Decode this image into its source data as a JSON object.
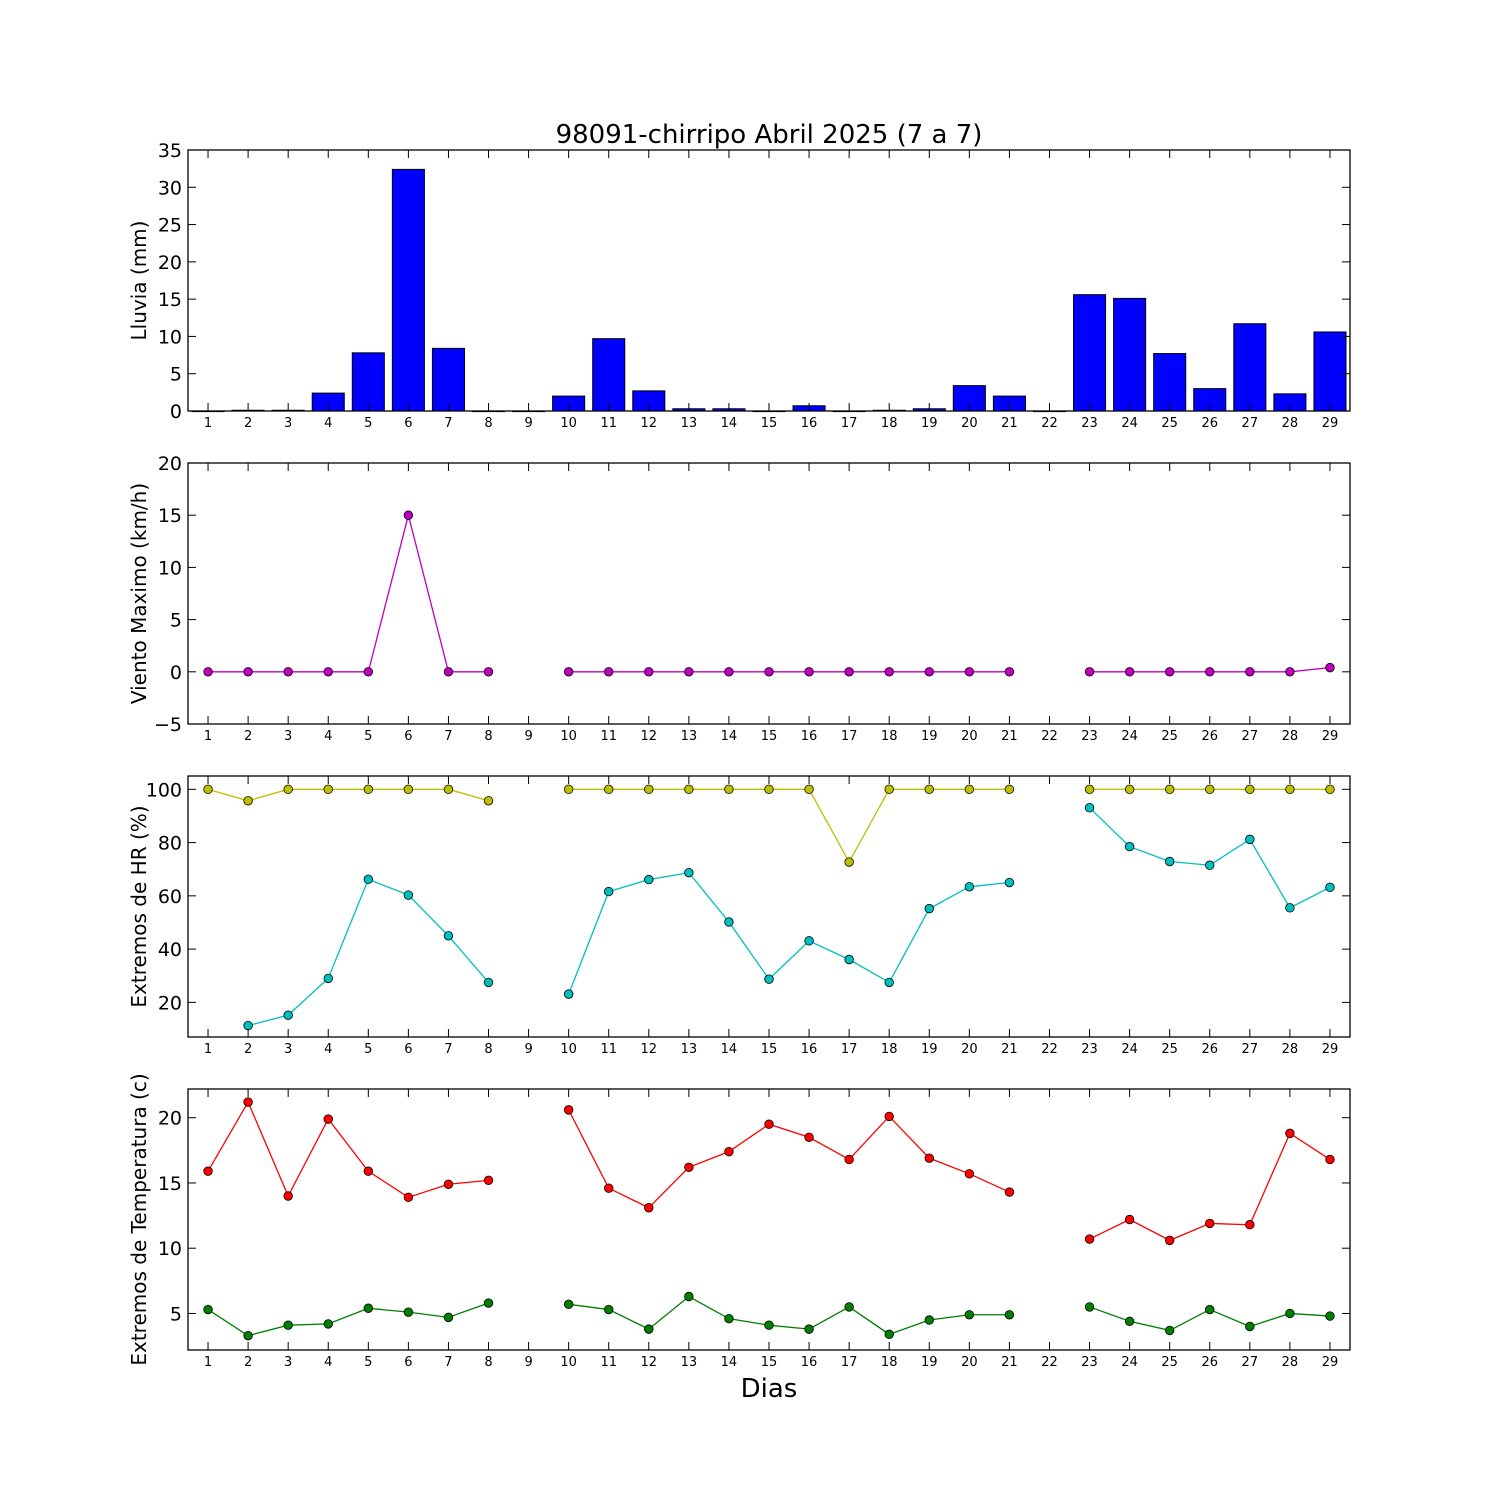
{
  "figure": {
    "title": "98091-chirripo Abril 2025  (7 a 7)",
    "xlabel": "Dias"
  },
  "chart_data": [
    {
      "type": "bar",
      "ylabel": "Lluvia (mm)",
      "ylim": [
        0,
        35
      ],
      "yticks": [
        0,
        5,
        10,
        15,
        20,
        25,
        30,
        35
      ],
      "xlim": [
        0.5,
        29.5
      ],
      "categories": [
        1,
        2,
        3,
        4,
        5,
        6,
        7,
        8,
        9,
        10,
        11,
        12,
        13,
        14,
        15,
        16,
        17,
        18,
        19,
        20,
        21,
        22,
        23,
        24,
        25,
        26,
        27,
        28,
        29
      ],
      "series": [
        {
          "color": "#0000ff",
          "values": [
            0,
            0.1,
            0.1,
            2.4,
            7.8,
            32.4,
            8.4,
            0,
            0,
            2.0,
            9.7,
            2.7,
            0.3,
            0.3,
            0,
            0.7,
            0,
            0.1,
            0.3,
            3.4,
            2.0,
            0,
            15.6,
            15.1,
            7.7,
            3.0,
            11.7,
            2.3,
            10.6
          ]
        }
      ]
    },
    {
      "type": "line",
      "ylabel": "Viento Maximo (km/h)",
      "ylim": [
        -5,
        20
      ],
      "yticks": [
        -5,
        0,
        5,
        10,
        15,
        20
      ],
      "xlim": [
        0.5,
        29.5
      ],
      "x": [
        1,
        2,
        3,
        4,
        5,
        6,
        7,
        8,
        9,
        10,
        11,
        12,
        13,
        14,
        15,
        16,
        17,
        18,
        19,
        20,
        21,
        22,
        23,
        24,
        25,
        26,
        27,
        28,
        29
      ],
      "series": [
        {
          "color": "#bf00bf",
          "values": [
            0,
            0,
            0,
            0,
            0,
            15,
            0,
            0,
            null,
            0,
            0,
            0,
            0,
            0,
            0,
            0,
            0,
            0,
            0,
            0,
            0,
            null,
            0,
            0,
            0,
            0,
            0,
            0,
            0.4
          ]
        }
      ]
    },
    {
      "type": "line",
      "ylabel": "Extremos de HR (%)",
      "ylim": [
        7,
        105
      ],
      "yticks": [
        20,
        40,
        60,
        80,
        100
      ],
      "xlim": [
        0.5,
        29.5
      ],
      "x": [
        1,
        2,
        3,
        4,
        5,
        6,
        7,
        8,
        9,
        10,
        11,
        12,
        13,
        14,
        15,
        16,
        17,
        18,
        19,
        20,
        21,
        22,
        23,
        24,
        25,
        26,
        27,
        28,
        29
      ],
      "series": [
        {
          "color": "#bfbf00",
          "values": [
            100,
            95.7,
            100,
            100,
            100,
            100,
            100,
            95.7,
            null,
            100,
            100,
            100,
            100,
            100,
            100,
            100,
            72.7,
            100,
            100,
            100,
            100,
            null,
            100,
            100,
            100,
            100,
            100,
            100,
            100
          ]
        },
        {
          "color": "#00bfbf",
          "values": [
            null,
            11.3,
            15.2,
            29,
            66.2,
            60.3,
            45,
            27.5,
            null,
            23.1,
            61.6,
            66.1,
            68.7,
            50.2,
            28.7,
            43.1,
            36.1,
            27.5,
            55.2,
            63.4,
            65,
            null,
            93.1,
            78.5,
            72.9,
            71.5,
            81.2,
            55.5,
            63.2
          ]
        }
      ]
    },
    {
      "type": "line",
      "ylabel": "Extremos de Temperatura (c)",
      "ylim": [
        2.2,
        22.2
      ],
      "yticks": [
        5,
        10,
        15,
        20
      ],
      "xlim": [
        0.5,
        29.5
      ],
      "x": [
        1,
        2,
        3,
        4,
        5,
        6,
        7,
        8,
        9,
        10,
        11,
        12,
        13,
        14,
        15,
        16,
        17,
        18,
        19,
        20,
        21,
        22,
        23,
        24,
        25,
        26,
        27,
        28,
        29
      ],
      "series": [
        {
          "color": "#ff0000",
          "values": [
            15.9,
            21.2,
            14,
            19.9,
            15.9,
            13.9,
            14.9,
            15.2,
            null,
            20.6,
            14.6,
            13.1,
            16.2,
            17.4,
            19.5,
            18.5,
            16.8,
            20.1,
            16.9,
            15.7,
            14.3,
            null,
            10.7,
            12.2,
            10.6,
            11.9,
            11.8,
            18.8,
            16.8
          ]
        },
        {
          "color": "#007f00",
          "values": [
            5.3,
            3.3,
            4.1,
            4.2,
            5.4,
            5.1,
            4.7,
            5.8,
            null,
            5.7,
            5.3,
            3.8,
            6.3,
            4.6,
            4.1,
            3.8,
            5.5,
            3.4,
            4.5,
            4.9,
            4.9,
            null,
            5.5,
            4.4,
            3.7,
            5.3,
            4.0,
            5.0,
            4.8
          ]
        }
      ]
    }
  ]
}
